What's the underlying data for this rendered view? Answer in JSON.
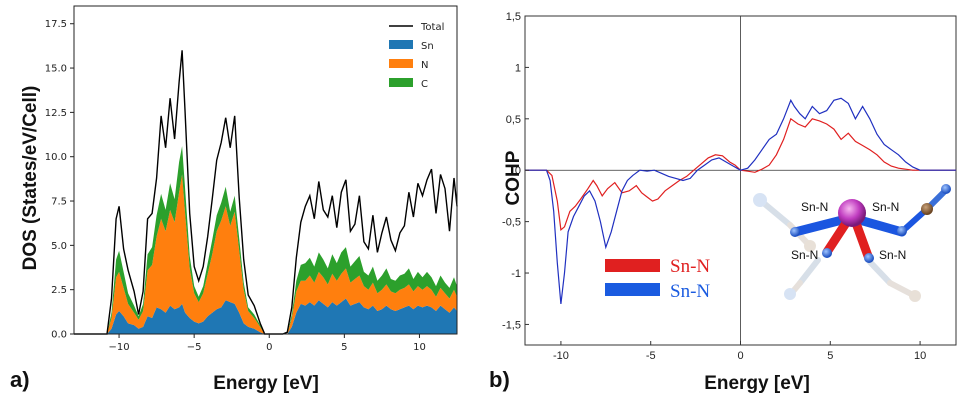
{
  "panels": {
    "a": {
      "label": "a)"
    },
    "b": {
      "label": "b)"
    }
  },
  "chart_data": [
    {
      "type": "area",
      "panel": "a)",
      "xlabel": "Energy [eV]",
      "ylabel": "DOS (States/eV/Cell)",
      "xlim": [
        -13,
        12.5
      ],
      "ylim": [
        0,
        18.5
      ],
      "xticks": [
        -10,
        -5,
        0,
        5,
        10
      ],
      "xtick_labels": [
        "−10",
        "−5",
        "0",
        "5",
        "10"
      ],
      "yticks": [
        0,
        2.5,
        5,
        7.5,
        10,
        12.5,
        15,
        17.5
      ],
      "ytick_labels": [
        "0.0",
        "2.5",
        "5.0",
        "7.5",
        "10.0",
        "12.5",
        "15.0",
        "17.5"
      ],
      "legend_position": "top-right",
      "x": [
        -10.8,
        -10.5,
        -10.2,
        -10.0,
        -9.7,
        -9.4,
        -9.0,
        -8.7,
        -8.4,
        -8.1,
        -7.8,
        -7.5,
        -7.2,
        -6.9,
        -6.6,
        -6.3,
        -6.0,
        -5.8,
        -5.6,
        -5.3,
        -5.0,
        -4.7,
        -4.4,
        -4.1,
        -3.8,
        -3.5,
        -3.2,
        -2.9,
        -2.6,
        -2.3,
        -2.0,
        -1.7,
        -1.4,
        -1.0,
        -0.6,
        -0.3,
        0.0,
        0.3,
        0.6,
        0.9,
        1.2,
        1.5,
        1.8,
        2.1,
        2.4,
        2.7,
        3.0,
        3.3,
        3.6,
        3.9,
        4.2,
        4.5,
        4.8,
        5.1,
        5.4,
        5.7,
        6.0,
        6.3,
        6.6,
        6.9,
        7.2,
        7.5,
        7.8,
        8.1,
        8.4,
        8.7,
        9.0,
        9.3,
        9.6,
        9.9,
        10.2,
        10.5,
        10.8,
        11.1,
        11.4,
        11.7,
        12.0,
        12.3,
        12.5
      ],
      "series": [
        {
          "name": "Total",
          "style": "line",
          "color": "#000000",
          "values": [
            0.0,
            2.0,
            6.5,
            7.2,
            4.8,
            3.6,
            2.4,
            1.1,
            2.4,
            6.5,
            6.8,
            8.8,
            12.3,
            10.5,
            13.3,
            11.0,
            14.2,
            16.0,
            12.5,
            6.8,
            3.8,
            3.0,
            3.8,
            5.5,
            7.6,
            9.8,
            10.8,
            12.2,
            10.5,
            12.3,
            7.7,
            4.2,
            2.2,
            1.6,
            0.6,
            0.0,
            0.0,
            0.0,
            0.0,
            0.0,
            0.1,
            1.5,
            4.3,
            6.3,
            7.2,
            7.8,
            6.5,
            8.6,
            7.0,
            6.6,
            7.8,
            6.0,
            8.0,
            8.7,
            5.8,
            6.2,
            7.8,
            5.2,
            4.8,
            6.7,
            4.6,
            5.7,
            6.6,
            5.3,
            4.7,
            5.7,
            6.1,
            8.0,
            6.6,
            8.5,
            7.8,
            8.7,
            9.3,
            6.8,
            9.0,
            8.2,
            5.8,
            8.8,
            7.2
          ]
        },
        {
          "name": "Sn",
          "style": "area",
          "color": "#1f77b4",
          "values": [
            0.0,
            0.3,
            1.1,
            1.3,
            1.0,
            0.6,
            0.5,
            0.3,
            0.4,
            1.0,
            0.9,
            1.5,
            1.4,
            1.2,
            1.6,
            1.4,
            1.5,
            1.7,
            1.2,
            0.9,
            0.7,
            0.6,
            0.7,
            1.0,
            1.2,
            1.4,
            1.5,
            1.9,
            1.8,
            1.7,
            1.2,
            0.6,
            0.4,
            0.3,
            0.1,
            0.0,
            0.0,
            0.0,
            0.0,
            0.0,
            0.0,
            0.4,
            1.2,
            1.7,
            1.6,
            1.8,
            1.6,
            1.9,
            1.7,
            1.5,
            1.8,
            1.6,
            1.8,
            2.0,
            1.6,
            1.7,
            1.8,
            1.5,
            1.4,
            1.6,
            1.3,
            1.4,
            1.6,
            1.4,
            1.3,
            1.4,
            1.5,
            1.6,
            1.4,
            1.6,
            1.5,
            1.6,
            1.5,
            1.3,
            1.6,
            1.4,
            1.2,
            1.5,
            1.3
          ]
        },
        {
          "name": "N",
          "style": "area",
          "color": "#ff7f0e",
          "values": [
            0.0,
            0.6,
            2.1,
            2.2,
            1.6,
            1.1,
            0.7,
            0.5,
            0.9,
            2.6,
            3.0,
            4.0,
            5.1,
            4.6,
            5.4,
            4.9,
            6.5,
            7.3,
            5.6,
            2.8,
            1.6,
            1.2,
            1.6,
            2.4,
            3.3,
            4.4,
            4.9,
            5.3,
            4.3,
            5.2,
            3.5,
            1.9,
            0.9,
            0.6,
            0.3,
            0.0,
            0.0,
            0.0,
            0.0,
            0.0,
            0.0,
            0.5,
            1.2,
            1.3,
            1.4,
            1.5,
            1.3,
            1.6,
            1.5,
            1.3,
            1.6,
            1.4,
            1.6,
            1.7,
            1.3,
            1.4,
            1.5,
            1.2,
            1.1,
            1.3,
            1.0,
            1.1,
            1.2,
            1.0,
            1.0,
            1.1,
            1.1,
            1.2,
            1.0,
            1.1,
            1.0,
            1.1,
            1.0,
            0.8,
            1.0,
            0.9,
            0.8,
            1.0,
            0.8
          ]
        },
        {
          "name": "C",
          "style": "area",
          "color": "#2ca02c",
          "values": [
            0.0,
            0.3,
            1.0,
            1.2,
            0.9,
            0.6,
            0.4,
            0.2,
            0.4,
            0.9,
            1.0,
            1.2,
            1.4,
            1.2,
            1.5,
            1.3,
            1.7,
            1.6,
            1.4,
            0.7,
            0.4,
            0.3,
            0.4,
            0.6,
            0.8,
            0.9,
            1.0,
            1.1,
            0.8,
            0.9,
            0.7,
            0.4,
            0.2,
            0.2,
            0.1,
            0.0,
            0.0,
            0.0,
            0.0,
            0.0,
            0.0,
            0.2,
            0.6,
            0.9,
            1.0,
            1.0,
            0.9,
            1.1,
            1.0,
            0.9,
            1.1,
            1.0,
            1.2,
            1.2,
            0.9,
            1.0,
            1.1,
            0.8,
            0.8,
            0.9,
            0.7,
            0.8,
            0.9,
            0.7,
            0.7,
            0.8,
            0.8,
            0.9,
            0.7,
            0.8,
            0.7,
            0.8,
            0.7,
            0.6,
            0.7,
            0.6,
            0.6,
            0.7,
            0.6
          ]
        }
      ]
    },
    {
      "type": "line",
      "panel": "b)",
      "xlabel": "Energy [eV]",
      "ylabel": "COHP",
      "xlim": [
        -12,
        12
      ],
      "ylim": [
        -1.7,
        1.5
      ],
      "xticks": [
        -10,
        -5,
        0,
        5,
        10
      ],
      "xtick_labels": [
        "-10",
        "-5",
        "0",
        "5",
        "10"
      ],
      "yticks": [
        1.5,
        1,
        0.5,
        0,
        -0.5,
        -1,
        -1.5
      ],
      "ytick_labels": [
        "1,5",
        "1",
        "0,5",
        "0",
        "-0,5",
        "-1",
        "-1,5"
      ],
      "zero_lines": true,
      "legend_position": "bottom-left",
      "series": [
        {
          "name": "Sn-N",
          "color": "#e02020",
          "x": [
            -12,
            -10.8,
            -10.5,
            -10.2,
            -10.0,
            -9.8,
            -9.5,
            -9.2,
            -8.9,
            -8.5,
            -8.2,
            -8.0,
            -7.7,
            -7.4,
            -7.0,
            -6.6,
            -6.2,
            -5.8,
            -5.5,
            -5.2,
            -4.9,
            -4.6,
            -4.2,
            -3.8,
            -3.4,
            -3.0,
            -2.6,
            -2.2,
            -1.8,
            -1.4,
            -1.0,
            -0.6,
            -0.3,
            0.0,
            0.4,
            0.8,
            1.2,
            1.6,
            2.0,
            2.4,
            2.8,
            3.2,
            3.6,
            4.0,
            4.4,
            4.8,
            5.2,
            5.6,
            6.0,
            6.4,
            6.8,
            7.2,
            7.6,
            8.0,
            8.4,
            8.8,
            9.2,
            9.6,
            10.0,
            12.0
          ],
          "y": [
            0,
            0,
            -0.05,
            -0.3,
            -0.58,
            -0.55,
            -0.4,
            -0.35,
            -0.28,
            -0.18,
            -0.1,
            -0.15,
            -0.25,
            -0.18,
            -0.12,
            -0.22,
            -0.2,
            -0.15,
            -0.22,
            -0.26,
            -0.3,
            -0.28,
            -0.2,
            -0.15,
            -0.1,
            -0.06,
            0.0,
            0.06,
            0.12,
            0.15,
            0.14,
            0.08,
            0.05,
            0.0,
            -0.01,
            -0.02,
            0.01,
            0.05,
            0.15,
            0.3,
            0.5,
            0.45,
            0.42,
            0.5,
            0.48,
            0.45,
            0.4,
            0.3,
            0.36,
            0.28,
            0.24,
            0.2,
            0.15,
            0.08,
            0.04,
            0.02,
            0.01,
            0.0,
            0.0,
            0.0
          ]
        },
        {
          "name": "Sn-N",
          "color": "#2030c0",
          "x": [
            -12,
            -10.8,
            -10.6,
            -10.4,
            -10.2,
            -10.0,
            -9.8,
            -9.6,
            -9.3,
            -9.0,
            -8.7,
            -8.4,
            -8.1,
            -7.8,
            -7.5,
            -7.2,
            -6.9,
            -6.6,
            -6.3,
            -6.0,
            -5.6,
            -5.2,
            -4.8,
            -4.4,
            -4.0,
            -3.6,
            -3.2,
            -2.8,
            -2.4,
            -2.0,
            -1.6,
            -1.2,
            -0.8,
            -0.4,
            0.0,
            0.4,
            0.8,
            1.2,
            1.6,
            2.0,
            2.4,
            2.8,
            3.0,
            3.3,
            3.6,
            4.0,
            4.4,
            4.8,
            5.2,
            5.6,
            6.0,
            6.4,
            6.8,
            7.2,
            7.6,
            8.0,
            8.4,
            8.8,
            9.2,
            9.6,
            10.0,
            12.0
          ],
          "y": [
            0,
            0,
            -0.1,
            -0.4,
            -0.9,
            -1.3,
            -1.0,
            -0.6,
            -0.45,
            -0.35,
            -0.25,
            -0.2,
            -0.3,
            -0.5,
            -0.75,
            -0.6,
            -0.4,
            -0.2,
            -0.1,
            -0.05,
            0.0,
            -0.01,
            0.0,
            -0.03,
            -0.06,
            -0.08,
            -0.1,
            -0.08,
            0.0,
            0.05,
            0.1,
            0.12,
            0.08,
            0.04,
            0.0,
            0.02,
            0.1,
            0.2,
            0.3,
            0.35,
            0.5,
            0.68,
            0.62,
            0.55,
            0.5,
            0.62,
            0.55,
            0.58,
            0.68,
            0.7,
            0.65,
            0.5,
            0.62,
            0.5,
            0.35,
            0.25,
            0.2,
            0.15,
            0.08,
            0.03,
            0.0,
            0.0
          ]
        }
      ],
      "legend": [
        {
          "label": "Sn-N",
          "color": "#e02020"
        },
        {
          "label": "Sn-N",
          "color": "#2030c0"
        }
      ],
      "inset_bond_labels": [
        "Sn-N",
        "Sn-N",
        "Sn-N",
        "Sn-N"
      ]
    }
  ]
}
